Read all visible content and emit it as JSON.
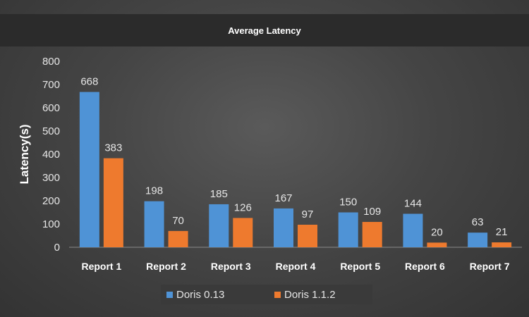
{
  "colors": {
    "series1": "#4f93d6",
    "series2": "#ee7a2e",
    "text": "#ffffff",
    "axis_text": "#e6e6e6",
    "axis_line": "#8a8a8a"
  },
  "chart_data": {
    "type": "bar",
    "title": "Average Latency",
    "xlabel": "",
    "ylabel": "Latency(s)",
    "ylim": [
      0,
      800
    ],
    "yticks": [
      0,
      100,
      200,
      300,
      400,
      500,
      600,
      700,
      800
    ],
    "grid": false,
    "legend": "bottom",
    "categories": [
      "Report 1",
      "Report 2",
      "Report 3",
      "Report 4",
      "Report 5",
      "Report 6",
      "Report 7"
    ],
    "series": [
      {
        "name": "Doris 0.13",
        "values": [
          668,
          198,
          185,
          167,
          150,
          144,
          63
        ]
      },
      {
        "name": "Doris 1.1.2",
        "values": [
          383,
          70,
          126,
          97,
          109,
          20,
          21
        ]
      }
    ]
  }
}
